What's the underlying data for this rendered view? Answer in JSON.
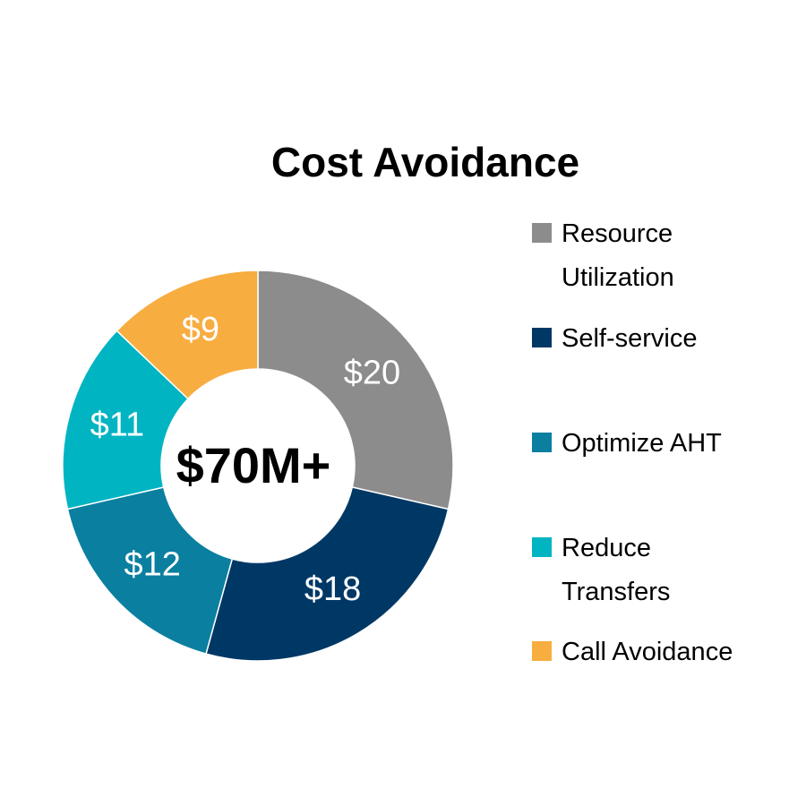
{
  "chart_data": {
    "type": "donut",
    "title": "Cost Avoidance",
    "center_label": "$70M+",
    "categories": [
      "Resource Utilization",
      "Self-service",
      "Optimize AHT",
      "Reduce Transfers",
      "Call Avoidance"
    ],
    "values": [
      20,
      18,
      12,
      11,
      9
    ],
    "value_labels": [
      "$20",
      "$18",
      "$12",
      "$11",
      "$9"
    ],
    "colors": [
      "#8c8c8c",
      "#003865",
      "#0a7fa0",
      "#00b4c2",
      "#f8ad41"
    ],
    "legend": "right"
  }
}
